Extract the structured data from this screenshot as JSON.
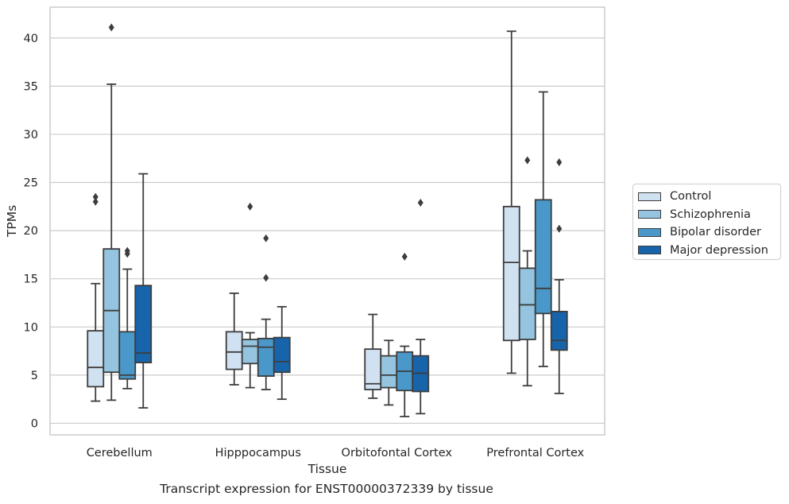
{
  "caption": "Transcript expression for ENST00000372339 by tissue",
  "chart_data": {
    "type": "boxplot",
    "xlabel": "Tissue",
    "ylabel": "TPMs",
    "ylim": [
      -1.2,
      43.2
    ],
    "yticks": [
      0,
      5,
      10,
      15,
      20,
      25,
      30,
      35,
      40
    ],
    "grid": "horizontal",
    "legend_position": "right",
    "categories": [
      "Cerebellum",
      "Hipppocampus",
      "Orbitofontal Cortex",
      "Prefrontal Cortex"
    ],
    "series": [
      {
        "name": "Control",
        "color": "#d0e1f2",
        "boxes": [
          {
            "whisker_low": 2.3,
            "q1": 3.8,
            "median": 5.8,
            "q3": 9.6,
            "whisker_high": 14.5,
            "outliers": [
              23.0,
              23.5
            ]
          },
          {
            "whisker_low": 4.0,
            "q1": 5.6,
            "median": 7.4,
            "q3": 9.5,
            "whisker_high": 13.5,
            "outliers": []
          },
          {
            "whisker_low": 2.6,
            "q1": 3.5,
            "median": 4.1,
            "q3": 7.7,
            "whisker_high": 11.3,
            "outliers": []
          },
          {
            "whisker_low": 5.2,
            "q1": 8.6,
            "median": 16.7,
            "q3": 22.5,
            "whisker_high": 40.7,
            "outliers": []
          }
        ]
      },
      {
        "name": "Schizophrenia",
        "color": "#94c4df",
        "boxes": [
          {
            "whisker_low": 2.4,
            "q1": 5.3,
            "median": 11.7,
            "q3": 18.1,
            "whisker_high": 35.2,
            "outliers": [
              41.1
            ]
          },
          {
            "whisker_low": 3.7,
            "q1": 6.2,
            "median": 8.0,
            "q3": 8.7,
            "whisker_high": 9.4,
            "outliers": [
              22.5
            ]
          },
          {
            "whisker_low": 1.9,
            "q1": 3.7,
            "median": 5.0,
            "q3": 7.0,
            "whisker_high": 8.6,
            "outliers": []
          },
          {
            "whisker_low": 3.9,
            "q1": 8.7,
            "median": 12.3,
            "q3": 16.1,
            "whisker_high": 17.9,
            "outliers": [
              27.3
            ]
          }
        ]
      },
      {
        "name": "Bipolar disorder",
        "color": "#4a98c9",
        "boxes": [
          {
            "whisker_low": 3.6,
            "q1": 4.6,
            "median": 5.0,
            "q3": 9.5,
            "whisker_high": 16.0,
            "outliers": [
              17.6,
              17.9
            ]
          },
          {
            "whisker_low": 3.5,
            "q1": 4.9,
            "median": 7.9,
            "q3": 8.8,
            "whisker_high": 10.8,
            "outliers": [
              15.1,
              19.2
            ]
          },
          {
            "whisker_low": 0.7,
            "q1": 3.4,
            "median": 5.4,
            "q3": 7.4,
            "whisker_high": 8.0,
            "outliers": [
              17.3
            ]
          },
          {
            "whisker_low": 5.9,
            "q1": 11.4,
            "median": 14.0,
            "q3": 23.2,
            "whisker_high": 34.4,
            "outliers": []
          }
        ]
      },
      {
        "name": "Major depression",
        "color": "#1764ab",
        "boxes": [
          {
            "whisker_low": 1.6,
            "q1": 6.3,
            "median": 7.3,
            "q3": 14.3,
            "whisker_high": 25.9,
            "outliers": []
          },
          {
            "whisker_low": 2.5,
            "q1": 5.3,
            "median": 6.4,
            "q3": 8.9,
            "whisker_high": 12.1,
            "outliers": []
          },
          {
            "whisker_low": 1.0,
            "q1": 3.3,
            "median": 5.2,
            "q3": 7.0,
            "whisker_high": 8.7,
            "outliers": [
              22.9
            ]
          },
          {
            "whisker_low": 3.1,
            "q1": 7.6,
            "median": 8.6,
            "q3": 11.6,
            "whisker_high": 14.9,
            "outliers": [
              20.2,
              27.1
            ]
          }
        ]
      }
    ]
  }
}
